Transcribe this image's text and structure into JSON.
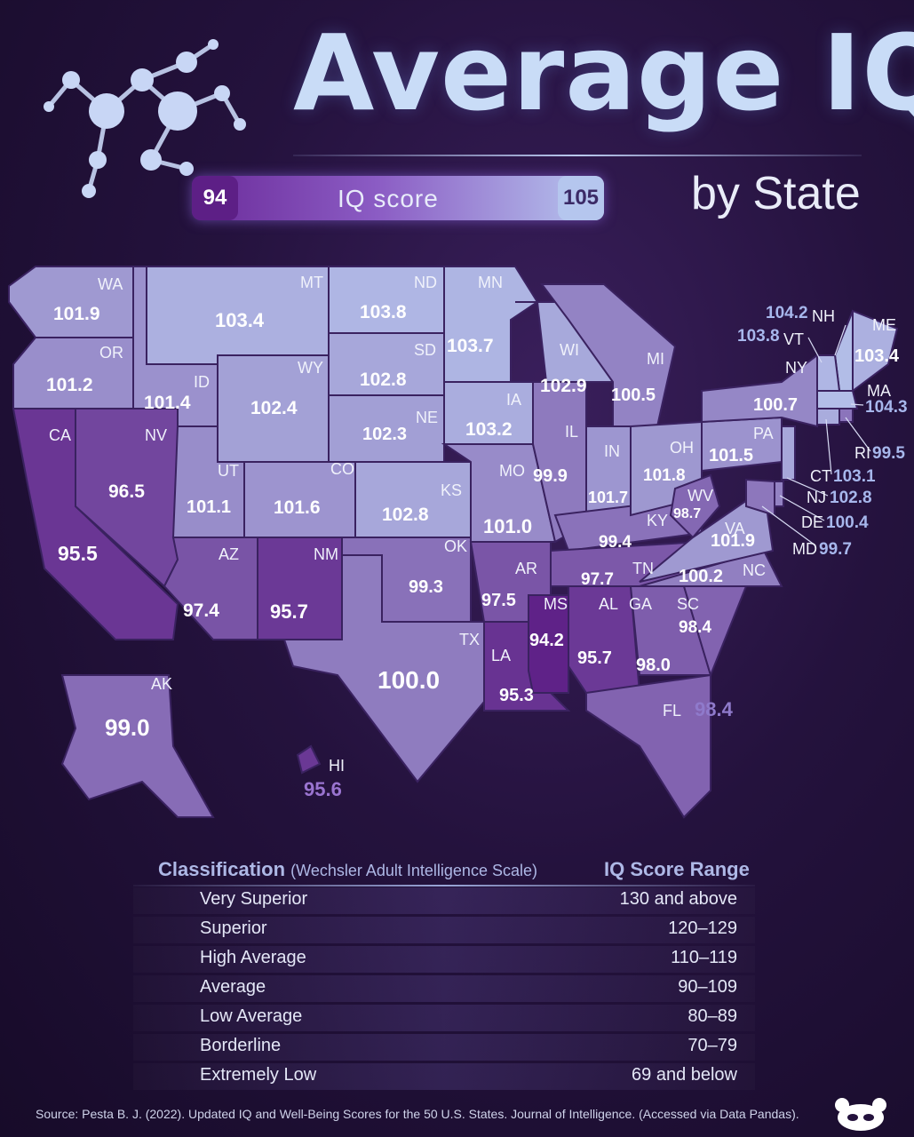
{
  "header": {
    "title": "Average IQ",
    "subtitle": "by State",
    "scale_min": "94",
    "scale_max": "105",
    "scale_label": "IQ score"
  },
  "colors": {
    "low": "#5d1f86",
    "high": "#b9c9ef",
    "background": "#24123d"
  },
  "states": [
    {
      "abbr": "WA",
      "iq": "101.9"
    },
    {
      "abbr": "OR",
      "iq": "101.2"
    },
    {
      "abbr": "CA",
      "iq": "95.5"
    },
    {
      "abbr": "ID",
      "iq": "101.4"
    },
    {
      "abbr": "NV",
      "iq": "96.5"
    },
    {
      "abbr": "MT",
      "iq": "103.4"
    },
    {
      "abbr": "WY",
      "iq": "102.4"
    },
    {
      "abbr": "UT",
      "iq": "101.1"
    },
    {
      "abbr": "AZ",
      "iq": "97.4"
    },
    {
      "abbr": "CO",
      "iq": "101.6"
    },
    {
      "abbr": "NM",
      "iq": "95.7"
    },
    {
      "abbr": "ND",
      "iq": "103.8"
    },
    {
      "abbr": "SD",
      "iq": "102.8"
    },
    {
      "abbr": "NE",
      "iq": "102.3"
    },
    {
      "abbr": "KS",
      "iq": "102.8"
    },
    {
      "abbr": "OK",
      "iq": "99.3"
    },
    {
      "abbr": "TX",
      "iq": "100.0"
    },
    {
      "abbr": "MN",
      "iq": "103.7"
    },
    {
      "abbr": "IA",
      "iq": "103.2"
    },
    {
      "abbr": "MO",
      "iq": "101.0"
    },
    {
      "abbr": "AR",
      "iq": "97.5"
    },
    {
      "abbr": "LA",
      "iq": "95.3"
    },
    {
      "abbr": "WI",
      "iq": "102.9"
    },
    {
      "abbr": "IL",
      "iq": "99.9"
    },
    {
      "abbr": "MS",
      "iq": "94.2"
    },
    {
      "abbr": "MI",
      "iq": "100.5"
    },
    {
      "abbr": "IN",
      "iq": "101.7"
    },
    {
      "abbr": "KY",
      "iq": "99.4"
    },
    {
      "abbr": "TN",
      "iq": "97.7"
    },
    {
      "abbr": "AL",
      "iq": "95.7"
    },
    {
      "abbr": "OH",
      "iq": "101.8"
    },
    {
      "abbr": "WV",
      "iq": "98.7"
    },
    {
      "abbr": "GA",
      "iq": "98.0"
    },
    {
      "abbr": "FL",
      "iq": "98.4"
    },
    {
      "abbr": "SC",
      "iq": "98.4"
    },
    {
      "abbr": "NC",
      "iq": "100.2"
    },
    {
      "abbr": "VA",
      "iq": "101.9"
    },
    {
      "abbr": "PA",
      "iq": "101.5"
    },
    {
      "abbr": "NY",
      "iq": "100.7"
    },
    {
      "abbr": "ME",
      "iq": "103.4"
    },
    {
      "abbr": "NH",
      "iq": "104.2"
    },
    {
      "abbr": "VT",
      "iq": "103.8"
    },
    {
      "abbr": "MA",
      "iq": "104.3"
    },
    {
      "abbr": "RI",
      "iq": "99.5"
    },
    {
      "abbr": "CT",
      "iq": "103.1"
    },
    {
      "abbr": "NJ",
      "iq": "102.8"
    },
    {
      "abbr": "DE",
      "iq": "100.4"
    },
    {
      "abbr": "MD",
      "iq": "99.7"
    },
    {
      "abbr": "AK",
      "iq": "99.0"
    },
    {
      "abbr": "HI",
      "iq": "95.6"
    }
  ],
  "legend": {
    "heading": "Classification",
    "heading_note": "(Wechsler Adult Intelligence Scale)",
    "range_heading": "IQ Score Range",
    "rows": [
      {
        "class": "Very Superior",
        "range": "130 and above"
      },
      {
        "class": "Superior",
        "range": "120–129"
      },
      {
        "class": "High Average",
        "range": "110–119"
      },
      {
        "class": "Average",
        "range": "90–109"
      },
      {
        "class": "Low Average",
        "range": "80–89"
      },
      {
        "class": "Borderline",
        "range": "70–79"
      },
      {
        "class": "Extremely Low",
        "range": "69 and below"
      }
    ]
  },
  "source": "Source: Pesta B. J. (2022). Updated IQ and Well-Being Scores for the 50 U.S. States. Journal of Intelligence. (Accessed via Data Pandas)."
}
